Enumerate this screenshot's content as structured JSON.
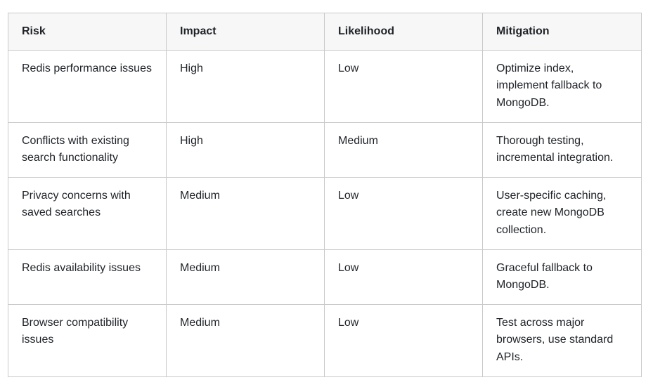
{
  "table": {
    "headers": [
      "Risk",
      "Impact",
      "Likelihood",
      "Mitigation"
    ],
    "rows": [
      [
        "Redis performance issues",
        "High",
        "Low",
        "Optimize index, implement fallback to MongoDB."
      ],
      [
        "Conflicts with existing search functionality",
        "High",
        "Medium",
        "Thorough testing, incremental integration."
      ],
      [
        "Privacy concerns with saved searches",
        "Medium",
        "Low",
        "User-specific caching, create new MongoDB collection."
      ],
      [
        "Redis availability issues",
        "Medium",
        "Low",
        "Graceful fallback to MongoDB."
      ],
      [
        "Browser compatibility issues",
        "Medium",
        "Low",
        "Test across major browsers, use standard APIs."
      ]
    ]
  }
}
